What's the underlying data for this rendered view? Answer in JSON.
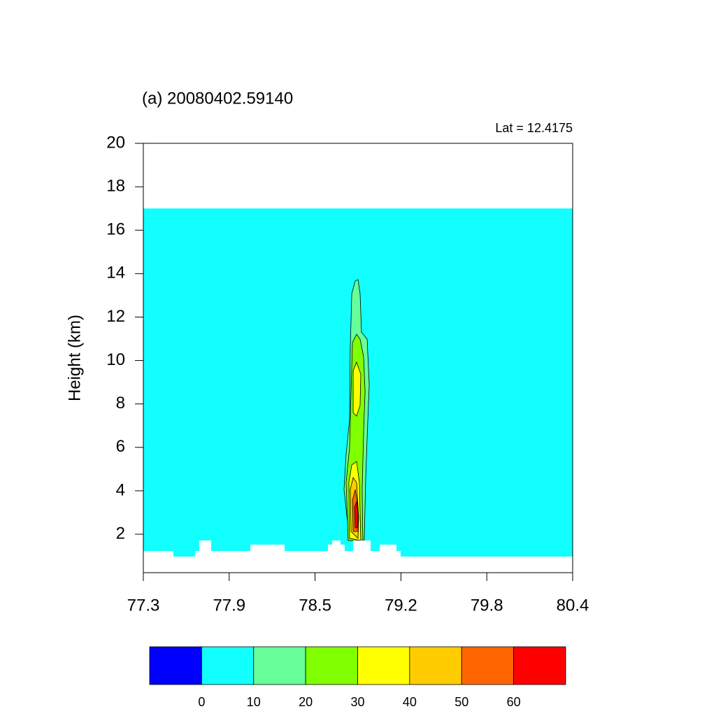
{
  "chart_data": {
    "type": "contour",
    "title": "(a) 20080402.59140",
    "annotation": "Lat =  12.4175",
    "ylabel": "Height (km)",
    "xlim": [
      77.3,
      80.4
    ],
    "xticks": [
      {
        "value": 77.3,
        "label": "77.3"
      },
      {
        "value": 77.92,
        "label": "77.9"
      },
      {
        "value": 78.54,
        "label": "78.5"
      },
      {
        "value": 79.16,
        "label": "79.2"
      },
      {
        "value": 79.78,
        "label": "79.8"
      },
      {
        "value": 80.4,
        "label": "80.4"
      }
    ],
    "ylim": [
      0.23,
      20
    ],
    "yticks": [
      2,
      4,
      6,
      8,
      10,
      12,
      14,
      16,
      18,
      20
    ],
    "levels": [
      0,
      10,
      20,
      30,
      40,
      50,
      60
    ],
    "colors": [
      "#0000ff",
      "#11ffff",
      "#66ff99",
      "#80ff00",
      "#ffff00",
      "#ffcc00",
      "#ff6600",
      "#ff0000"
    ],
    "regions": [
      {
        "level": 0,
        "x": [
          77.3,
          77.3,
          80.4,
          80.4
        ],
        "y": [
          0.23,
          17,
          17,
          0.23
        ]
      },
      {
        "level": 10,
        "x": [
          78.789,
          78.749,
          78.764,
          78.789,
          78.794,
          78.805,
          78.83,
          78.85,
          78.865,
          78.875,
          78.916,
          78.931,
          78.921,
          78.906,
          78.895
        ],
        "y": [
          1.71,
          4.06,
          5.67,
          7.28,
          10.5,
          13.08,
          13.66,
          13.72,
          13.08,
          11.31,
          10.98,
          8.89,
          7.28,
          4.71,
          1.71
        ]
      },
      {
        "level": 20,
        "x": [
          78.779,
          78.764,
          78.789,
          78.8,
          78.81,
          78.84,
          78.865,
          78.89,
          78.901,
          78.89,
          78.88,
          78.885
        ],
        "y": [
          1.71,
          4.38,
          6.0,
          8.57,
          10.82,
          11.21,
          10.98,
          10.18,
          8.57,
          6.64,
          4.06,
          1.71
        ]
      },
      {
        "level": 30,
        "x": [
          78.815,
          78.815,
          78.84,
          78.87,
          78.865,
          78.84
        ],
        "y": [
          7.6,
          9.54,
          9.92,
          9.37,
          7.93,
          7.44
        ]
      },
      {
        "level": 30,
        "x": [
          78.789,
          78.784,
          78.805,
          78.84,
          78.86,
          78.87
        ],
        "y": [
          1.81,
          4.38,
          5.19,
          5.35,
          4.38,
          1.71
        ]
      },
      {
        "level": 40,
        "x": [
          78.8,
          78.794,
          78.815,
          78.84,
          78.855,
          78.85
        ],
        "y": [
          2.13,
          4.06,
          4.61,
          4.38,
          2.77,
          1.81
        ]
      },
      {
        "level": 50,
        "x": [
          78.815,
          78.81,
          78.83,
          78.85,
          78.85
        ],
        "y": [
          2.13,
          3.58,
          4.06,
          3.26,
          2.13
        ]
      },
      {
        "level": 60,
        "x": [
          78.83,
          78.825,
          78.84,
          78.85,
          78.845
        ],
        "y": [
          2.29,
          3.26,
          3.48,
          2.93,
          2.29
        ]
      }
    ],
    "terrain": {
      "x": [
        77.3,
        77.3,
        77.517,
        77.517,
        77.674,
        77.674,
        77.704,
        77.704,
        77.79,
        77.79,
        78.073,
        78.073,
        78.32,
        78.32,
        78.633,
        78.633,
        78.663,
        78.663,
        78.724,
        78.724,
        78.754,
        78.754,
        78.815,
        78.815,
        78.941,
        78.941,
        79.007,
        79.007,
        79.128,
        79.128,
        79.158,
        79.158,
        80.4,
        80.4
      ],
      "y": [
        0.23,
        1.23,
        1.23,
        0.97,
        0.97,
        1.23,
        1.23,
        1.71,
        1.71,
        1.23,
        1.23,
        1.52,
        1.52,
        1.23,
        1.23,
        1.52,
        1.52,
        1.71,
        1.71,
        1.52,
        1.52,
        1.23,
        1.23,
        1.71,
        1.71,
        1.23,
        1.23,
        1.52,
        1.52,
        1.23,
        1.23,
        0.97,
        0.97,
        0.23
      ]
    }
  }
}
